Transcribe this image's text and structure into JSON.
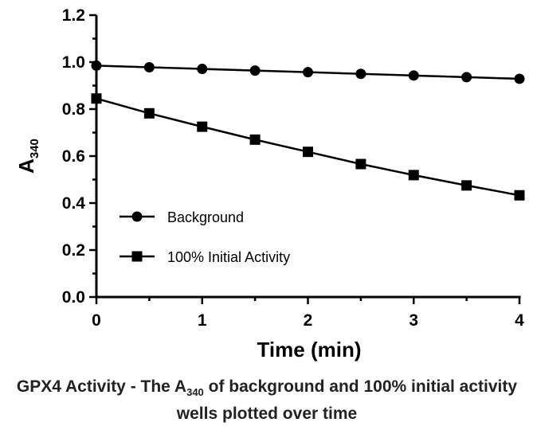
{
  "chart_data": {
    "type": "line",
    "xlabel": "Time (min)",
    "ylabel": "A",
    "ylabel_sub": "340",
    "xlim": [
      0,
      4
    ],
    "ylim": [
      0,
      1.2
    ],
    "xticks": [
      "0",
      "1",
      "2",
      "3",
      "4"
    ],
    "yticks": [
      "0.0",
      "0.2",
      "0.4",
      "0.6",
      "0.8",
      "1.0",
      "1.2"
    ],
    "grid": false,
    "legend_position": "bottom-left",
    "x": [
      0,
      0.5,
      1,
      1.5,
      2,
      2.5,
      3,
      3.5,
      4
    ],
    "series": [
      {
        "name": "Background",
        "marker": "circle",
        "values": [
          0.985,
          0.978,
          0.971,
          0.964,
          0.957,
          0.95,
          0.943,
          0.936,
          0.929
        ]
      },
      {
        "name": "100% Initial Activity",
        "marker": "square",
        "values": [
          0.845,
          0.782,
          0.725,
          0.67,
          0.618,
          0.566,
          0.519,
          0.475,
          0.433
        ]
      }
    ]
  },
  "caption": {
    "part1": "GPX4 Activity - The A",
    "sub": "340",
    "part2": " of background and 100% initial activity wells plotted over time"
  }
}
